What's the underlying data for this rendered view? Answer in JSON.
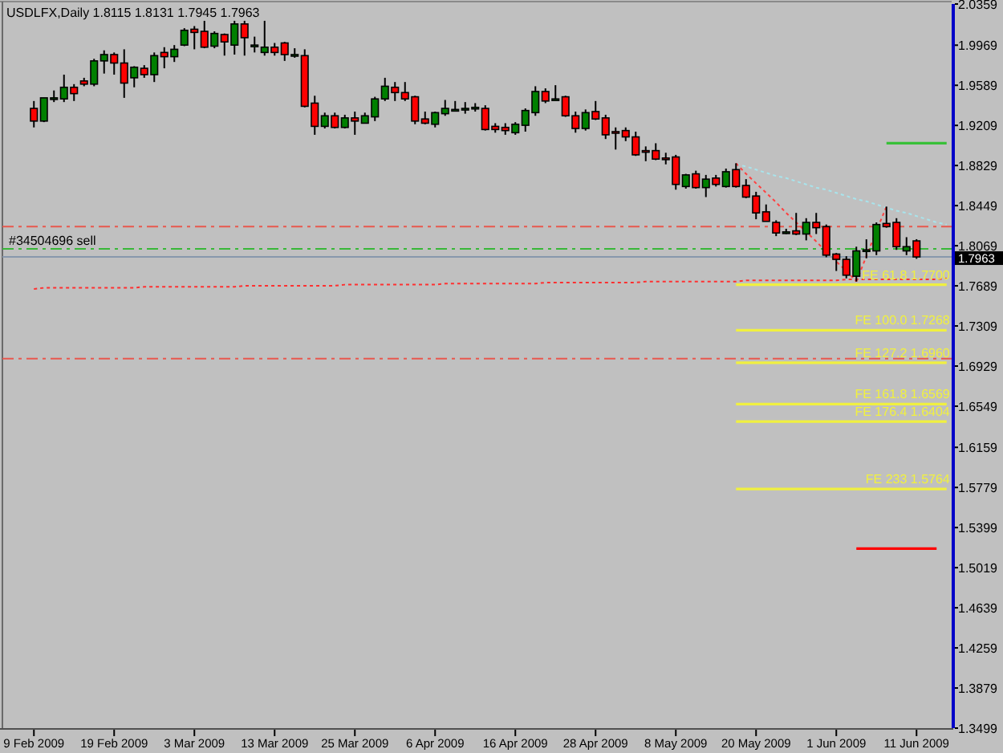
{
  "chart_data": {
    "type": "candlestick",
    "title": "USDLFX,Daily 1.8115 1.8131 1.7945 1.7963",
    "categories": [
      "9 Feb 2009",
      null,
      null,
      null,
      null,
      null,
      null,
      null,
      "19 Feb 2009",
      null,
      null,
      null,
      null,
      null,
      null,
      null,
      "3 Mar 2009",
      null,
      null,
      null,
      null,
      null,
      null,
      null,
      "13 Mar 2009",
      null,
      null,
      null,
      null,
      null,
      null,
      null,
      "25 Mar 2009",
      null,
      null,
      null,
      null,
      null,
      null,
      null,
      "6 Apr 2009",
      null,
      null,
      null,
      null,
      null,
      null,
      null,
      "16 Apr 2009",
      null,
      null,
      null,
      null,
      null,
      null,
      null,
      "28 Apr 2009",
      null,
      null,
      null,
      null,
      null,
      null,
      null,
      "8 May 2009",
      null,
      null,
      null,
      null,
      null,
      null,
      null,
      "20 May 2009",
      null,
      null,
      null,
      null,
      null,
      null,
      null,
      "1 Jun 2009",
      null,
      null,
      null,
      null,
      null,
      null,
      null,
      "11 Jun 2009",
      null,
      null,
      null
    ],
    "ohlc": [
      [
        1.937,
        1.944,
        1.919,
        1.925
      ],
      [
        1.925,
        1.947,
        1.924,
        1.947
      ],
      [
        1.947,
        1.954,
        1.943,
        1.947
      ],
      [
        1.946,
        1.969,
        1.943,
        1.957
      ],
      [
        1.957,
        1.96,
        1.944,
        1.951
      ],
      [
        1.963,
        1.966,
        1.958,
        1.96
      ],
      [
        1.96,
        1.984,
        1.958,
        1.982
      ],
      [
        1.982,
        1.992,
        1.97,
        1.988
      ],
      [
        1.988,
        1.99,
        1.969,
        1.98
      ],
      [
        1.98,
        1.993,
        1.947,
        1.961
      ],
      [
        1.966,
        1.977,
        1.957,
        1.976
      ],
      [
        1.975,
        1.978,
        1.966,
        1.969
      ],
      [
        1.969,
        1.99,
        1.962,
        1.987
      ],
      [
        1.99,
        1.995,
        1.975,
        1.986
      ],
      [
        1.986,
        1.997,
        1.981,
        1.993
      ],
      [
        1.997,
        2.013,
        1.996,
        2.011
      ],
      [
        2.012,
        2.015,
        1.993,
        2.009
      ],
      [
        2.01,
        2.02,
        1.994,
        1.995
      ],
      [
        1.996,
        2.01,
        1.994,
        2.008
      ],
      [
        2.007,
        2.008,
        1.987,
        2
      ],
      [
        1.997,
        2.02,
        1.988,
        2.017
      ],
      [
        2.017,
        2.02,
        1.987,
        2.004
      ],
      [
        1.997,
        2.005,
        1.99,
        1.997
      ],
      [
        1.99,
        2.02,
        1.987,
        1.995
      ],
      [
        1.995,
        1.999,
        1.987,
        1.99
      ],
      [
        1.999,
        2,
        1.982,
        1.988
      ],
      [
        1.988,
        1.994,
        1.985,
        1.988
      ],
      [
        1.987,
        1.993,
        1.938,
        1.939
      ],
      [
        1.942,
        1.949,
        1.912,
        1.92
      ],
      [
        1.92,
        1.933,
        1.918,
        1.93
      ],
      [
        1.93,
        1.933,
        1.918,
        1.919
      ],
      [
        1.919,
        1.931,
        1.918,
        1.928
      ],
      [
        1.928,
        1.934,
        1.912,
        1.925
      ],
      [
        1.923,
        1.933,
        1.923,
        1.93
      ],
      [
        1.929,
        1.948,
        1.925,
        1.946
      ],
      [
        1.946,
        1.966,
        1.944,
        1.958
      ],
      [
        1.957,
        1.962,
        1.944,
        1.952
      ],
      [
        1.952,
        1.962,
        1.944,
        1.946
      ],
      [
        1.948,
        1.949,
        1.922,
        1.925
      ],
      [
        1.927,
        1.934,
        1.922,
        1.923
      ],
      [
        1.922,
        1.934,
        1.919,
        1.933
      ],
      [
        1.932,
        1.945,
        1.93,
        1.937
      ],
      [
        1.936,
        1.944,
        1.934,
        1.936
      ],
      [
        1.937,
        1.943,
        1.932,
        1.937
      ],
      [
        1.938,
        1.942,
        1.934,
        1.938
      ],
      [
        1.937,
        1.94,
        1.916,
        1.917
      ],
      [
        1.92,
        1.923,
        1.914,
        1.917
      ],
      [
        1.919,
        1.923,
        1.912,
        1.916
      ],
      [
        1.914,
        1.924,
        1.912,
        1.922
      ],
      [
        1.921,
        1.937,
        1.915,
        1.935
      ],
      [
        1.933,
        1.958,
        1.93,
        1.953
      ],
      [
        1.953,
        1.956,
        1.942,
        1.944
      ],
      [
        1.946,
        1.959,
        1.944,
        1.946
      ],
      [
        1.948,
        1.949,
        1.929,
        1.93
      ],
      [
        1.93,
        1.934,
        1.914,
        1.918
      ],
      [
        1.918,
        1.936,
        1.916,
        1.933
      ],
      [
        1.934,
        1.944,
        1.926,
        1.927
      ],
      [
        1.928,
        1.931,
        1.908,
        1.912
      ],
      [
        1.915,
        1.919,
        1.898,
        1.914
      ],
      [
        1.916,
        1.919,
        1.906,
        1.91
      ],
      [
        1.91,
        1.915,
        1.892,
        1.893
      ],
      [
        1.897,
        1.901,
        1.887,
        1.896
      ],
      [
        1.897,
        1.904,
        1.888,
        1.889
      ],
      [
        1.89,
        1.895,
        1.884,
        1.889
      ],
      [
        1.891,
        1.893,
        1.86,
        1.865
      ],
      [
        1.863,
        1.875,
        1.861,
        1.874
      ],
      [
        1.875,
        1.878,
        1.861,
        1.862
      ],
      [
        1.862,
        1.874,
        1.853,
        1.87
      ],
      [
        1.871,
        1.874,
        1.863,
        1.865
      ],
      [
        1.863,
        1.88,
        1.862,
        1.877
      ],
      [
        1.879,
        1.885,
        1.862,
        1.863
      ],
      [
        1.864,
        1.87,
        1.852,
        1.853
      ],
      [
        1.854,
        1.858,
        1.832,
        1.838
      ],
      [
        1.839,
        1.846,
        1.83,
        1.83
      ],
      [
        1.829,
        1.831,
        1.816,
        1.819
      ],
      [
        1.82,
        1.823,
        1.818,
        1.82
      ],
      [
        1.821,
        1.838,
        1.817,
        1.818
      ],
      [
        1.818,
        1.833,
        1.812,
        1.829
      ],
      [
        1.829,
        1.838,
        1.818,
        1.824
      ],
      [
        1.825,
        1.827,
        1.796,
        1.798
      ],
      [
        1.799,
        1.8,
        1.783,
        1.794
      ],
      [
        1.794,
        1.797,
        1.776,
        1.779
      ],
      [
        1.778,
        1.806,
        1.773,
        1.802
      ],
      [
        1.802,
        1.813,
        1.795,
        1.803
      ],
      [
        1.802,
        1.829,
        1.798,
        1.827
      ],
      [
        1.828,
        1.844,
        1.824,
        1.825
      ],
      [
        1.829,
        1.833,
        1.803,
        1.806
      ],
      [
        1.802,
        1.815,
        1.798,
        1.806
      ],
      [
        1.8115,
        1.8131,
        1.7945,
        1.7963
      ],
      null,
      null,
      null
    ],
    "ylim": [
      1.3499,
      2.0359
    ],
    "yticks": [
      2.0359,
      1.9969,
      1.9589,
      1.9209,
      1.8829,
      1.8449,
      1.8069,
      1.7689,
      1.7309,
      1.6929,
      1.6549,
      1.6159,
      1.5779,
      1.5399,
      1.5019,
      1.4639,
      1.4259,
      1.3879,
      1.3499
    ],
    "series": [
      {
        "type": "line",
        "color": "#ff3030",
        "line_style": "dotted",
        "values": [
          1.766,
          1.767,
          1.767,
          1.767,
          1.767,
          1.767,
          1.767,
          1.767,
          1.767,
          1.767,
          1.767,
          1.768,
          1.768,
          1.768,
          1.768,
          1.768,
          1.768,
          1.768,
          1.768,
          1.768,
          1.768,
          1.769,
          1.769,
          1.769,
          1.769,
          1.769,
          1.769,
          1.769,
          1.769,
          1.769,
          1.769,
          1.77,
          1.77,
          1.77,
          1.77,
          1.77,
          1.77,
          1.77,
          1.77,
          1.77,
          1.77,
          1.771,
          1.771,
          1.771,
          1.771,
          1.771,
          1.771,
          1.771,
          1.771,
          1.771,
          1.771,
          1.772,
          1.772,
          1.772,
          1.772,
          1.772,
          1.772,
          1.772,
          1.772,
          1.772,
          1.772,
          1.773,
          1.773,
          1.773,
          1.773,
          1.773,
          1.773,
          1.773,
          1.773,
          1.773,
          1.773,
          1.774,
          1.774,
          1.774,
          1.774,
          1.774,
          1.774,
          1.774,
          1.774,
          1.774,
          1.774,
          1.775,
          1.775,
          1.775,
          1.775,
          1.775,
          1.775,
          1.775,
          1.775,
          1.775,
          1.775,
          1.776
        ]
      },
      {
        "type": "line",
        "color": "#a8e4ec",
        "line_style": "dotted",
        "values": [
          null,
          null,
          null,
          null,
          null,
          null,
          null,
          null,
          null,
          null,
          null,
          null,
          null,
          null,
          null,
          null,
          null,
          null,
          null,
          null,
          null,
          null,
          null,
          null,
          null,
          null,
          null,
          null,
          null,
          null,
          null,
          null,
          null,
          null,
          null,
          null,
          null,
          null,
          null,
          null,
          null,
          null,
          null,
          null,
          null,
          null,
          null,
          null,
          null,
          null,
          null,
          null,
          null,
          null,
          null,
          null,
          null,
          null,
          null,
          null,
          null,
          null,
          null,
          null,
          null,
          null,
          null,
          null,
          null,
          null,
          1.884,
          1.882,
          1.879,
          1.876,
          1.873,
          1.871,
          1.868,
          1.865,
          1.862,
          1.86,
          1.857,
          1.854,
          1.851,
          1.849,
          1.846,
          1.843,
          1.84,
          1.838,
          1.835,
          1.832,
          1.829,
          1.827
        ]
      },
      {
        "type": "line",
        "color": "#ff4040",
        "line_style": "dotted",
        "values": [
          null,
          null,
          null,
          null,
          null,
          null,
          null,
          null,
          null,
          null,
          null,
          null,
          null,
          null,
          null,
          null,
          null,
          null,
          null,
          null,
          null,
          null,
          null,
          null,
          null,
          null,
          null,
          null,
          null,
          null,
          null,
          null,
          null,
          null,
          null,
          null,
          null,
          null,
          null,
          null,
          null,
          null,
          null,
          null,
          null,
          null,
          null,
          null,
          null,
          null,
          null,
          null,
          null,
          null,
          null,
          null,
          null,
          null,
          null,
          null,
          null,
          null,
          null,
          null,
          null,
          null,
          null,
          null,
          null,
          null,
          1.885,
          1.875,
          1.866,
          1.857,
          1.848,
          1.838,
          1.829,
          1.82,
          1.811,
          1.801,
          1.792,
          1.783,
          1.773,
          null,
          null,
          null,
          null,
          null,
          null,
          null,
          null,
          null
        ]
      },
      {
        "type": "line",
        "color": "#ff4040",
        "line_style": "dotted",
        "values": [
          null,
          null,
          null,
          null,
          null,
          null,
          null,
          null,
          null,
          null,
          null,
          null,
          null,
          null,
          null,
          null,
          null,
          null,
          null,
          null,
          null,
          null,
          null,
          null,
          null,
          null,
          null,
          null,
          null,
          null,
          null,
          null,
          null,
          null,
          null,
          null,
          null,
          null,
          null,
          null,
          null,
          null,
          null,
          null,
          null,
          null,
          null,
          null,
          null,
          null,
          null,
          null,
          null,
          null,
          null,
          null,
          null,
          null,
          null,
          null,
          null,
          null,
          null,
          null,
          null,
          null,
          null,
          null,
          null,
          null,
          null,
          null,
          null,
          null,
          null,
          null,
          null,
          null,
          null,
          null,
          null,
          null,
          1.773,
          1.797,
          1.821,
          1.844,
          null,
          null,
          null,
          null,
          null,
          null
        ]
      },
      {
        "type": "line",
        "name": "FE 61.8 1.7700",
        "color": "#f0f040",
        "line_style": "solid",
        "values": [
          null,
          null,
          null,
          null,
          null,
          null,
          null,
          null,
          null,
          null,
          null,
          null,
          null,
          null,
          null,
          null,
          null,
          null,
          null,
          null,
          null,
          null,
          null,
          null,
          null,
          null,
          null,
          null,
          null,
          null,
          null,
          null,
          null,
          null,
          null,
          null,
          null,
          null,
          null,
          null,
          null,
          null,
          null,
          null,
          null,
          null,
          null,
          null,
          null,
          null,
          null,
          null,
          null,
          null,
          null,
          null,
          null,
          null,
          null,
          null,
          null,
          null,
          null,
          null,
          null,
          null,
          null,
          null,
          null,
          null,
          1.77,
          1.77,
          1.77,
          1.77,
          1.77,
          1.77,
          1.77,
          1.77,
          1.77,
          1.77,
          1.77,
          1.77,
          1.77,
          1.77,
          1.77,
          1.77,
          1.77,
          1.77,
          1.77,
          1.77,
          1.77,
          1.77
        ]
      },
      {
        "type": "line",
        "name": "FE 100.0 1.7268",
        "color": "#f0f040",
        "line_style": "solid",
        "values": [
          null,
          null,
          null,
          null,
          null,
          null,
          null,
          null,
          null,
          null,
          null,
          null,
          null,
          null,
          null,
          null,
          null,
          null,
          null,
          null,
          null,
          null,
          null,
          null,
          null,
          null,
          null,
          null,
          null,
          null,
          null,
          null,
          null,
          null,
          null,
          null,
          null,
          null,
          null,
          null,
          null,
          null,
          null,
          null,
          null,
          null,
          null,
          null,
          null,
          null,
          null,
          null,
          null,
          null,
          null,
          null,
          null,
          null,
          null,
          null,
          null,
          null,
          null,
          null,
          null,
          null,
          null,
          null,
          null,
          null,
          1.7268,
          1.7268,
          1.7268,
          1.7268,
          1.7268,
          1.7268,
          1.7268,
          1.7268,
          1.7268,
          1.7268,
          1.7268,
          1.7268,
          1.7268,
          1.7268,
          1.7268,
          1.7268,
          1.7268,
          1.7268,
          1.7268,
          1.7268,
          1.7268,
          1.7268
        ]
      },
      {
        "type": "line",
        "name": "FE 127.2 1.6960",
        "color": "#f0f040",
        "line_style": "solid",
        "values": [
          null,
          null,
          null,
          null,
          null,
          null,
          null,
          null,
          null,
          null,
          null,
          null,
          null,
          null,
          null,
          null,
          null,
          null,
          null,
          null,
          null,
          null,
          null,
          null,
          null,
          null,
          null,
          null,
          null,
          null,
          null,
          null,
          null,
          null,
          null,
          null,
          null,
          null,
          null,
          null,
          null,
          null,
          null,
          null,
          null,
          null,
          null,
          null,
          null,
          null,
          null,
          null,
          null,
          null,
          null,
          null,
          null,
          null,
          null,
          null,
          null,
          null,
          null,
          null,
          null,
          null,
          null,
          null,
          null,
          null,
          1.696,
          1.696,
          1.696,
          1.696,
          1.696,
          1.696,
          1.696,
          1.696,
          1.696,
          1.696,
          1.696,
          1.696,
          1.696,
          1.696,
          1.696,
          1.696,
          1.696,
          1.696,
          1.696,
          1.696,
          1.696,
          1.696
        ]
      },
      {
        "type": "line",
        "name": "FE 161.8 1.6569",
        "color": "#f0f040",
        "line_style": "solid",
        "values": [
          null,
          null,
          null,
          null,
          null,
          null,
          null,
          null,
          null,
          null,
          null,
          null,
          null,
          null,
          null,
          null,
          null,
          null,
          null,
          null,
          null,
          null,
          null,
          null,
          null,
          null,
          null,
          null,
          null,
          null,
          null,
          null,
          null,
          null,
          null,
          null,
          null,
          null,
          null,
          null,
          null,
          null,
          null,
          null,
          null,
          null,
          null,
          null,
          null,
          null,
          null,
          null,
          null,
          null,
          null,
          null,
          null,
          null,
          null,
          null,
          null,
          null,
          null,
          null,
          null,
          null,
          null,
          null,
          null,
          null,
          1.6569,
          1.6569,
          1.6569,
          1.6569,
          1.6569,
          1.6569,
          1.6569,
          1.6569,
          1.6569,
          1.6569,
          1.6569,
          1.6569,
          1.6569,
          1.6569,
          1.6569,
          1.6569,
          1.6569,
          1.6569,
          1.6569,
          1.6569,
          1.6569,
          1.6569
        ]
      },
      {
        "type": "line",
        "name": "FE 176.4 1.6404",
        "color": "#f0f040",
        "line_style": "solid",
        "values": [
          null,
          null,
          null,
          null,
          null,
          null,
          null,
          null,
          null,
          null,
          null,
          null,
          null,
          null,
          null,
          null,
          null,
          null,
          null,
          null,
          null,
          null,
          null,
          null,
          null,
          null,
          null,
          null,
          null,
          null,
          null,
          null,
          null,
          null,
          null,
          null,
          null,
          null,
          null,
          null,
          null,
          null,
          null,
          null,
          null,
          null,
          null,
          null,
          null,
          null,
          null,
          null,
          null,
          null,
          null,
          null,
          null,
          null,
          null,
          null,
          null,
          null,
          null,
          null,
          null,
          null,
          null,
          null,
          null,
          null,
          1.6404,
          1.6404,
          1.6404,
          1.6404,
          1.6404,
          1.6404,
          1.6404,
          1.6404,
          1.6404,
          1.6404,
          1.6404,
          1.6404,
          1.6404,
          1.6404,
          1.6404,
          1.6404,
          1.6404,
          1.6404,
          1.6404,
          1.6404,
          1.6404,
          1.6404
        ]
      },
      {
        "type": "line",
        "name": "FE 233 1.5764",
        "color": "#f0f040",
        "line_style": "solid",
        "values": [
          null,
          null,
          null,
          null,
          null,
          null,
          null,
          null,
          null,
          null,
          null,
          null,
          null,
          null,
          null,
          null,
          null,
          null,
          null,
          null,
          null,
          null,
          null,
          null,
          null,
          null,
          null,
          null,
          null,
          null,
          null,
          null,
          null,
          null,
          null,
          null,
          null,
          null,
          null,
          null,
          null,
          null,
          null,
          null,
          null,
          null,
          null,
          null,
          null,
          null,
          null,
          null,
          null,
          null,
          null,
          null,
          null,
          null,
          null,
          null,
          null,
          null,
          null,
          null,
          null,
          null,
          null,
          null,
          null,
          null,
          1.5764,
          1.5764,
          1.5764,
          1.5764,
          1.5764,
          1.5764,
          1.5764,
          1.5764,
          1.5764,
          1.5764,
          1.5764,
          1.5764,
          1.5764,
          1.5764,
          1.5764,
          1.5764,
          1.5764,
          1.5764,
          1.5764,
          1.5764,
          1.5764,
          1.5764
        ]
      },
      {
        "type": "line",
        "color": "#38c038",
        "line_style": "solid",
        "values": [
          null,
          null,
          null,
          null,
          null,
          null,
          null,
          null,
          null,
          null,
          null,
          null,
          null,
          null,
          null,
          null,
          null,
          null,
          null,
          null,
          null,
          null,
          null,
          null,
          null,
          null,
          null,
          null,
          null,
          null,
          null,
          null,
          null,
          null,
          null,
          null,
          null,
          null,
          null,
          null,
          null,
          null,
          null,
          null,
          null,
          null,
          null,
          null,
          null,
          null,
          null,
          null,
          null,
          null,
          null,
          null,
          null,
          null,
          null,
          null,
          null,
          null,
          null,
          null,
          null,
          null,
          null,
          null,
          null,
          null,
          null,
          null,
          null,
          null,
          null,
          null,
          null,
          null,
          null,
          null,
          null,
          null,
          null,
          null,
          null,
          1.904,
          1.904,
          1.904,
          1.904,
          1.904,
          1.904,
          1.904
        ]
      },
      {
        "type": "line",
        "color": "#ff0000",
        "line_style": "solid",
        "values": [
          null,
          null,
          null,
          null,
          null,
          null,
          null,
          null,
          null,
          null,
          null,
          null,
          null,
          null,
          null,
          null,
          null,
          null,
          null,
          null,
          null,
          null,
          null,
          null,
          null,
          null,
          null,
          null,
          null,
          null,
          null,
          null,
          null,
          null,
          null,
          null,
          null,
          null,
          null,
          null,
          null,
          null,
          null,
          null,
          null,
          null,
          null,
          null,
          null,
          null,
          null,
          null,
          null,
          null,
          null,
          null,
          null,
          null,
          null,
          null,
          null,
          null,
          null,
          null,
          null,
          null,
          null,
          null,
          null,
          null,
          null,
          null,
          null,
          null,
          null,
          null,
          null,
          null,
          null,
          null,
          null,
          null,
          1.52,
          1.52,
          1.52,
          1.52,
          1.52,
          1.52,
          1.52,
          1.52,
          1.52,
          null
        ]
      }
    ],
    "ref_lines": [
      {
        "axis": "y",
        "value": 1.825,
        "color": "#e8584e",
        "line_style": "dashed"
      },
      {
        "axis": "y",
        "value": 1.804,
        "label": "#34504696 sell",
        "color": "#38b838",
        "line_style": "dashed"
      },
      {
        "axis": "y",
        "value": 1.7,
        "color": "#e8584e",
        "line_style": "dashed"
      },
      {
        "axis": "y",
        "value": 1.7963,
        "label": "1.7963",
        "color": "#8898ac",
        "line_style": "solid"
      }
    ]
  }
}
